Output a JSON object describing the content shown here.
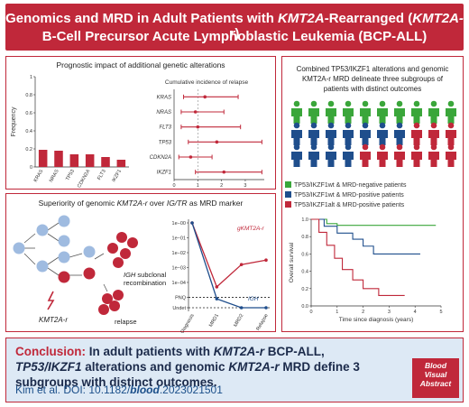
{
  "header": {
    "line1_pre": "Genomics and MRD in Adult Patients with ",
    "line1_em": "KMT2A",
    "line1_mid": "-Rearranged (",
    "line1_em2": "KMT2A-r",
    "line1_post": ")",
    "line2": "B-Cell Precursor Acute Lymphoblastic Leukemia (BCP-ALL)"
  },
  "panel1": {
    "title": "Prognostic impact of additional genetic alterations",
    "forest_title": "Cumulative incidence of relapse",
    "bar_ylabel": "Frequency",
    "bar_ticks": [
      "0",
      "0.2",
      "0.4",
      "0.6",
      "0.8",
      "1"
    ],
    "forest_ticks": [
      "0",
      "1",
      "2",
      "3"
    ]
  },
  "panel2": {
    "title_pre": "Superiority of genomic ",
    "title_em": "KMT2A-r",
    "title_mid": " over ",
    "title_em2": "IG/TR",
    "title_post": " as MRD marker",
    "subclonal_l1": "IGH",
    "subclonal_l1b": " subclonal",
    "subclonal_l2": "recombination",
    "kmt2a_label": "KMT2A-r",
    "relapse_label": "relapse",
    "g_label": "gKMT2A-r",
    "igh_label": "IGH",
    "y_ticks": [
      "1e−00",
      "1e−01",
      "1e−02",
      "1e−03",
      "1e−04",
      "PNQ",
      "Undet"
    ],
    "x_ticks": [
      "Diagnosis",
      "MRD1",
      "MRD2",
      "Relapse"
    ]
  },
  "panel3": {
    "title_l1": "Combined TP53/IKZF1 alterations and genomic",
    "title_l2": "KMT2A-r MRD delineate three subgroups of",
    "title_l3": "patients with distinct outcomes",
    "legend": [
      {
        "label": "TP53/IKZF1wt & MRD-negative patients",
        "color": "#3aa63a"
      },
      {
        "label": "TP53/IKZF1wt & MRD-positive patients",
        "color": "#1f4e8c"
      },
      {
        "label": "TP53/IKZF1alt & MRD-positive patients",
        "color": "#c0283a"
      }
    ],
    "km_ylabel": "Overall survival",
    "km_xlabel": "Time since diagnosis (years)",
    "km_yticks": [
      "0.0",
      "0.2",
      "0.4",
      "0.6",
      "0.8",
      "1.0"
    ],
    "km_xticks": [
      "0",
      "1",
      "2",
      "3",
      "4",
      "5"
    ]
  },
  "chart_data": [
    {
      "type": "bar",
      "categories": [
        "KRAS",
        "NRAS",
        "TP53",
        "CDKN2A",
        "FLT3",
        "IKZF1"
      ],
      "values": [
        0.19,
        0.18,
        0.14,
        0.14,
        0.11,
        0.08
      ],
      "ylabel": "Frequency",
      "ylim": [
        0,
        1
      ],
      "color": "#c0283a"
    },
    {
      "type": "scatter",
      "title": "Cumulative incidence of relapse",
      "categories": [
        "KRAS",
        "NRAS",
        "FLT3",
        "TP53",
        "CDKN2A",
        "IKZF1"
      ],
      "estimate": [
        1.3,
        0.9,
        1.0,
        1.8,
        0.7,
        2.1
      ],
      "lower": [
        0.4,
        0.3,
        0.3,
        0.6,
        0.2,
        0.9
      ],
      "upper": [
        2.7,
        2.1,
        2.8,
        3.7,
        1.6,
        3.7
      ],
      "xlim": [
        0,
        3.8
      ],
      "reference": 1
    },
    {
      "type": "line",
      "categories": [
        "Diagnosis",
        "MRD1",
        "MRD2",
        "Relapse"
      ],
      "series": [
        {
          "name": "gKMT2A-r",
          "color": "#c0283a",
          "values": [
            0,
            -4.3,
            -2.8,
            -2.5
          ]
        },
        {
          "name": "IGH",
          "color": "#1f4e8c",
          "values": [
            0,
            -5.1,
            -5.7,
            -5.7
          ]
        }
      ]
    },
    {
      "type": "line",
      "xlabel": "Time since diagnosis (years)",
      "ylabel": "Overall survival",
      "xlim": [
        0,
        5
      ],
      "ylim": [
        0,
        1
      ],
      "series": [
        {
          "color": "#3aa63a",
          "x": [
            0,
            0.6,
            0.6,
            1.0,
            1.0,
            4.8
          ],
          "y": [
            1.0,
            1.0,
            0.95,
            0.95,
            0.93,
            0.93
          ]
        },
        {
          "color": "#1f4e8c",
          "x": [
            0,
            0.5,
            0.5,
            1.0,
            1.0,
            1.6,
            1.6,
            2.0,
            2.0,
            2.4,
            2.4,
            4.2
          ],
          "y": [
            1.0,
            1.0,
            0.92,
            0.92,
            0.84,
            0.84,
            0.77,
            0.77,
            0.69,
            0.69,
            0.6,
            0.6
          ]
        },
        {
          "color": "#c0283a",
          "x": [
            0,
            0.3,
            0.3,
            0.6,
            0.6,
            0.9,
            0.9,
            1.2,
            1.2,
            1.6,
            1.6,
            2.0,
            2.0,
            2.6,
            2.6,
            3.6
          ],
          "y": [
            1.0,
            1.0,
            0.85,
            0.85,
            0.7,
            0.7,
            0.55,
            0.55,
            0.42,
            0.42,
            0.3,
            0.3,
            0.2,
            0.2,
            0.12,
            0.12
          ]
        }
      ]
    }
  ],
  "footer": {
    "conclusion_label": "Conclusion:",
    "conclusion_pre": " In adult patients with ",
    "conclusion_em1": "KMT2A-r",
    "conclusion_mid1": " BCP-ALL, ",
    "conclusion_em2": "TP53/IKZF1",
    "conclusion_mid2": " alterations and genomic ",
    "conclusion_em3": "KMT2A-r",
    "conclusion_post": " MRD define 3 subgroups with distinct outcomes.",
    "cite_pre": "Kim et al. DOI: 10.1182/",
    "cite_bold": "blood",
    "cite_post": ".2023021501",
    "badge_l1": "Blood",
    "badge_l2": "Visual",
    "badge_l3": "Abstract"
  }
}
